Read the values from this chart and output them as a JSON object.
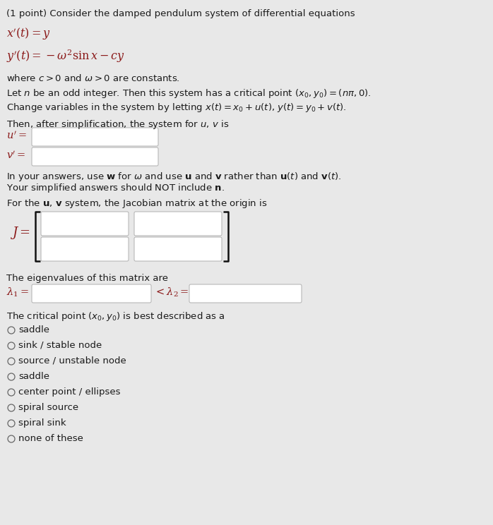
{
  "bg_color": "#e8e8e8",
  "text_color": "#1a1a1a",
  "math_color": "#8B1A1A",
  "box_color": "#ffffff",
  "box_border": "#b0b0b0",
  "radio_border": "#666666",
  "title_line": "(1 point) Consider the damped pendulum system of differential equations",
  "radio_options": [
    "saddle",
    "sink / stable node",
    "source / unstable node",
    "saddle",
    "center point / ellipses",
    "spiral source",
    "spiral sink",
    "none of these"
  ]
}
